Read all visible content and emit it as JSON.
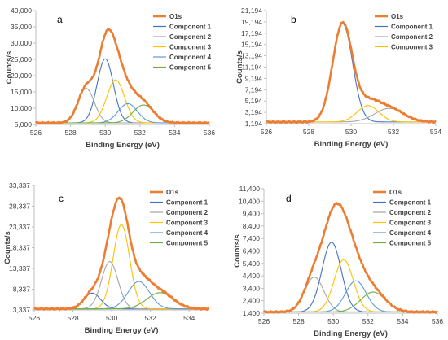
{
  "chart_data": [
    {
      "type": "line",
      "panel_letter": "a",
      "xlabel": "Binding Energy (eV)",
      "ylabel": "Counts/s",
      "xlim": [
        526,
        536
      ],
      "ylim": [
        5000,
        40000
      ],
      "xticks": [
        526,
        528,
        530,
        532,
        534,
        536
      ],
      "yticks": [
        5000,
        10000,
        15000,
        20000,
        25000,
        30000,
        35000,
        40000
      ],
      "ytick_labels": [
        "5,000",
        "10,000",
        "15,000",
        "20,000",
        "25,000",
        "30,000",
        "35,000",
        "40,000"
      ],
      "grid": false,
      "legend_position": "top-right",
      "baseline": 5500,
      "envelope": {
        "name": "O1s",
        "color": "#ED7D31"
      },
      "components": [
        {
          "name": "Component 1",
          "color": "#4472C4",
          "center": 530.0,
          "height": 19700,
          "fwhm": 1.1
        },
        {
          "name": "Component 2",
          "color": "#A5A5A5",
          "center": 528.9,
          "height": 10600,
          "fwhm": 1.1
        },
        {
          "name": "Component 3",
          "color": "#FFC000",
          "center": 530.6,
          "height": 13200,
          "fwhm": 1.2
        },
        {
          "name": "Component 4",
          "color": "#5B9BD5",
          "center": 531.3,
          "height": 5900,
          "fwhm": 1.3
        },
        {
          "name": "Component 5",
          "color": "#70AD47",
          "center": 532.2,
          "height": 5500,
          "fwhm": 1.4
        }
      ]
    },
    {
      "type": "line",
      "panel_letter": "b",
      "xlabel": "Binding Energy (eV)",
      "ylabel": "Counts/s",
      "xlim": [
        526,
        534
      ],
      "ylim": [
        1194,
        21194
      ],
      "xticks": [
        526,
        528,
        530,
        532,
        534
      ],
      "yticks": [
        1194,
        3194,
        5194,
        7194,
        9194,
        11194,
        13194,
        15194,
        17194,
        19194,
        21194
      ],
      "ytick_labels": [
        "1,194",
        "3,194",
        "5,194",
        "7,194",
        "9,194",
        "11,194",
        "13,194",
        "15,194",
        "17,194",
        "19,194",
        "21,194"
      ],
      "grid": false,
      "legend_position": "top-right",
      "baseline": 1500,
      "envelope": {
        "name": "O1s",
        "color": "#ED7D31"
      },
      "components": [
        {
          "name": "Component 1",
          "color": "#4472C4",
          "center": 529.6,
          "height": 17400,
          "fwhm": 1.1
        },
        {
          "name": "Component 2",
          "color": "#A5A5A5",
          "center": 531.8,
          "height": 2400,
          "fwhm": 1.6
        },
        {
          "name": "Component 3",
          "color": "#FFC000",
          "center": 530.8,
          "height": 2900,
          "fwhm": 1.2
        }
      ]
    },
    {
      "type": "line",
      "panel_letter": "c",
      "xlabel": "Binding Energy (eV)",
      "ylabel": "Counts/s",
      "xlim": [
        526,
        535
      ],
      "ylim": [
        3337,
        33337
      ],
      "xticks": [
        526,
        528,
        530,
        532,
        534
      ],
      "yticks": [
        3337,
        8337,
        13337,
        18337,
        23337,
        28337,
        33337
      ],
      "ytick_labels": [
        "3,337",
        "8,337",
        "13,337",
        "18,337",
        "23,337",
        "28,337",
        "33,337"
      ],
      "grid": false,
      "legend_position": "top-right",
      "baseline": 3600,
      "envelope": {
        "name": "O1s",
        "color": "#ED7D31"
      },
      "components": [
        {
          "name": "Component 1",
          "color": "#4472C4",
          "center": 529.0,
          "height": 3800,
          "fwhm": 1.0
        },
        {
          "name": "Component 2",
          "color": "#A5A5A5",
          "center": 529.9,
          "height": 11400,
          "fwhm": 1.0
        },
        {
          "name": "Component 3",
          "color": "#FFC000",
          "center": 530.5,
          "height": 20300,
          "fwhm": 1.0
        },
        {
          "name": "Component 4",
          "color": "#5B9BD5",
          "center": 531.4,
          "height": 6600,
          "fwhm": 1.3
        },
        {
          "name": "Component 5",
          "color": "#70AD47",
          "center": 532.5,
          "height": 3900,
          "fwhm": 1.6
        }
      ]
    },
    {
      "type": "line",
      "panel_letter": "d",
      "xlabel": "Binding Energy (eV)",
      "ylabel": "Counts/s",
      "xlim": [
        526,
        536
      ],
      "ylim": [
        1400,
        11400
      ],
      "xticks": [
        526,
        528,
        530,
        532,
        534,
        536
      ],
      "yticks": [
        1400,
        2400,
        3400,
        4400,
        5400,
        6400,
        7400,
        8400,
        9400,
        10400,
        11400
      ],
      "ytick_labels": [
        "1,400",
        "2,400",
        "3,400",
        "4,400",
        "5,400",
        "6,400",
        "7,400",
        "8,400",
        "9,400",
        "10,400",
        "11,400"
      ],
      "grid": false,
      "legend_position": "top-right",
      "baseline": 1500,
      "envelope": {
        "name": "O1s",
        "color": "#ED7D31"
      },
      "components": [
        {
          "name": "Component 1",
          "color": "#4472C4",
          "center": 529.9,
          "height": 5600,
          "fwhm": 1.3
        },
        {
          "name": "Component 2",
          "color": "#A5A5A5",
          "center": 528.9,
          "height": 2800,
          "fwhm": 1.3
        },
        {
          "name": "Component 3",
          "color": "#FFC000",
          "center": 530.6,
          "height": 4200,
          "fwhm": 1.3
        },
        {
          "name": "Component 4",
          "color": "#5B9BD5",
          "center": 531.3,
          "height": 2500,
          "fwhm": 1.4
        },
        {
          "name": "Component 5",
          "color": "#70AD47",
          "center": 532.3,
          "height": 1600,
          "fwhm": 1.7
        }
      ]
    }
  ]
}
